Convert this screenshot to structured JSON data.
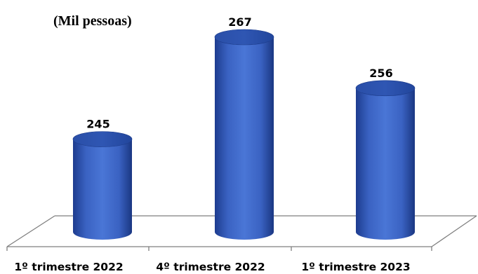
{
  "chart_data": {
    "type": "bar",
    "bar_shape": "cylinder",
    "unit_label": "(Mil pessoas)",
    "categories": [
      "1º trimestre 2022",
      "4º trimestre 2022",
      "1º trimestre 2023"
    ],
    "values": [
      245,
      267,
      256
    ],
    "value_labels": [
      "245",
      "267",
      "256"
    ],
    "bar_color": "#3f69c7",
    "bar_dark_color": "#1c3a8c",
    "floor_line_color": "#7f7f7f",
    "grid": false,
    "legend": "none"
  }
}
